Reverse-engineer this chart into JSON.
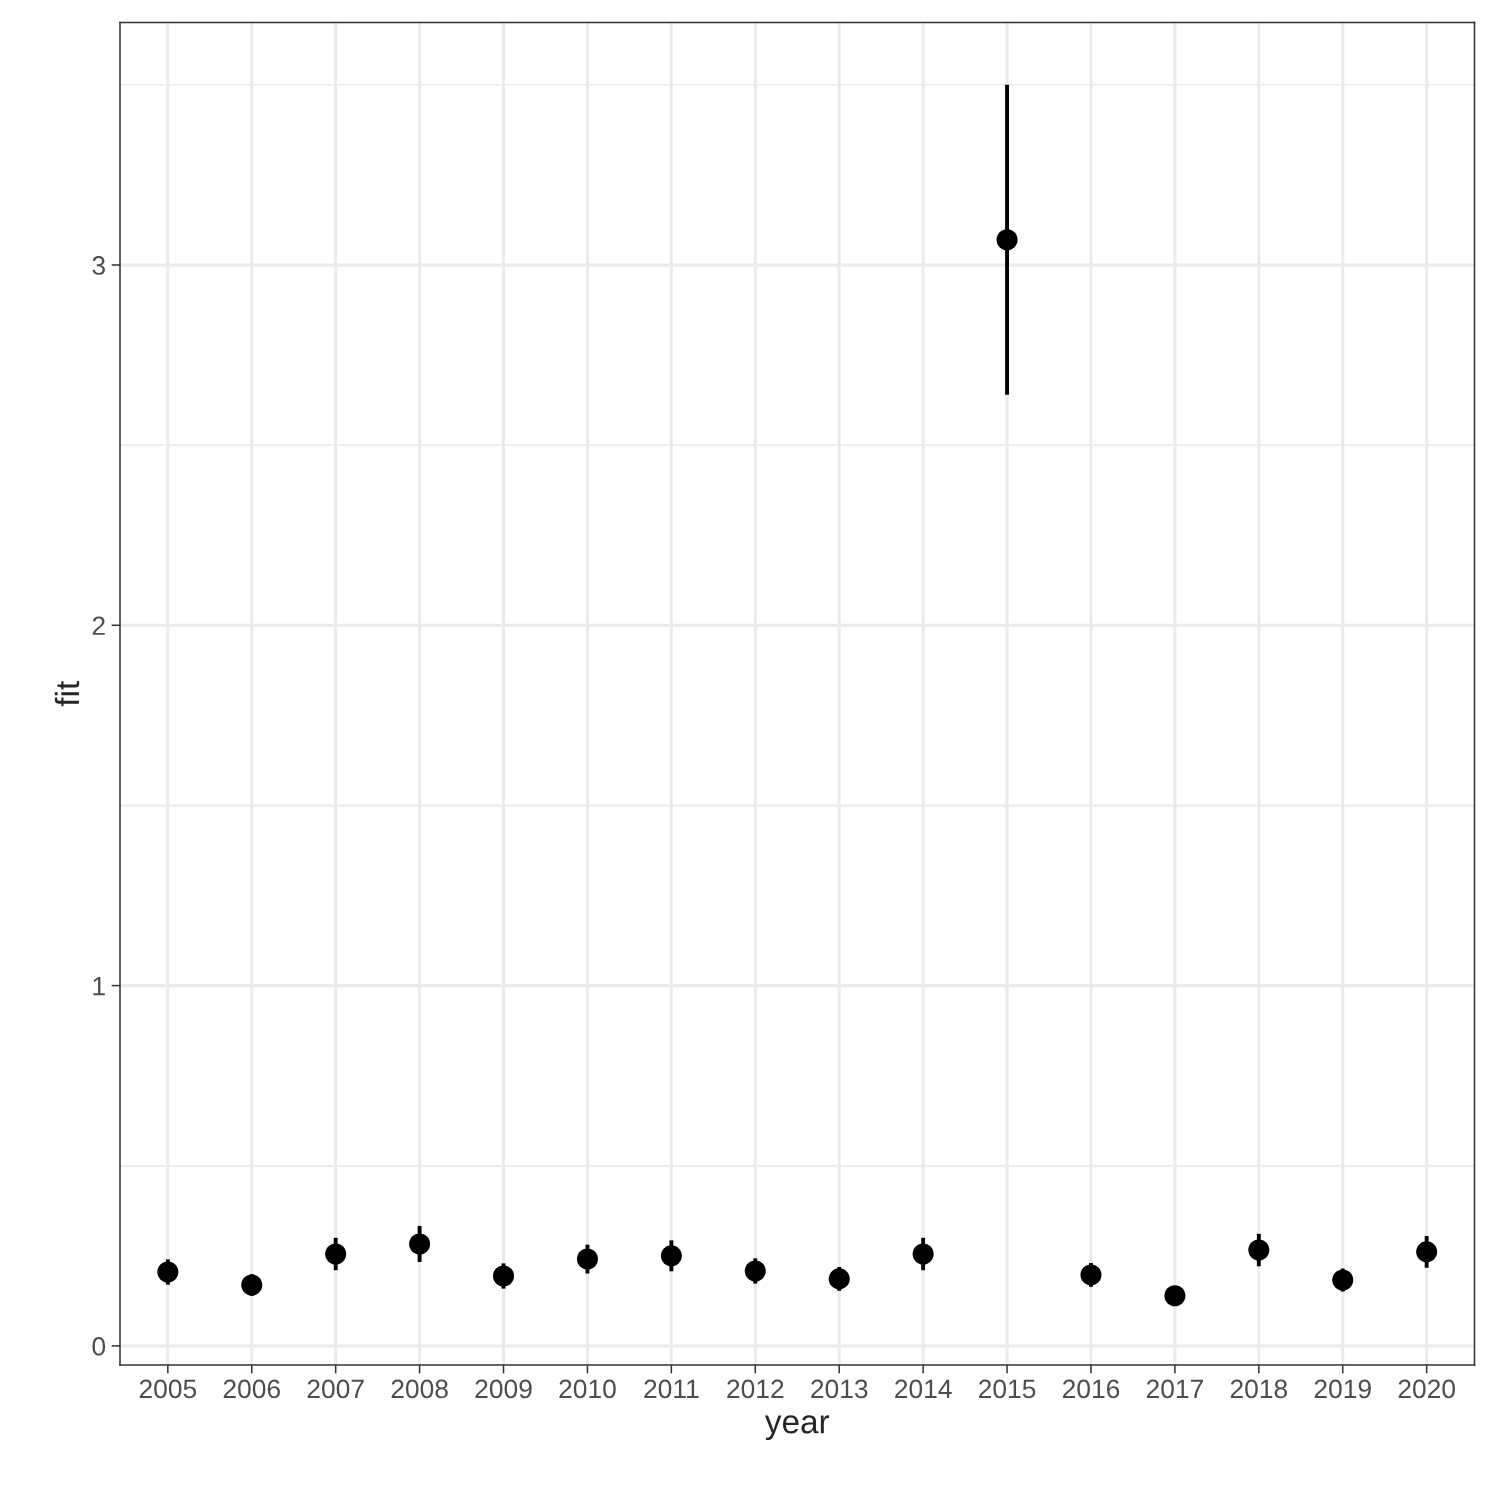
{
  "chart_data": {
    "type": "scatter",
    "xlabel": "year",
    "ylabel": "fit",
    "categories": [
      "2005",
      "2006",
      "2007",
      "2008",
      "2009",
      "2010",
      "2011",
      "2012",
      "2013",
      "2014",
      "2015",
      "2016",
      "2017",
      "2018",
      "2019",
      "2020"
    ],
    "values": [
      0.205,
      0.169,
      0.255,
      0.283,
      0.194,
      0.241,
      0.25,
      0.208,
      0.186,
      0.255,
      3.07,
      0.197,
      0.139,
      0.266,
      0.183,
      0.261
    ],
    "errors": [
      0.035,
      0.03,
      0.045,
      0.05,
      0.035,
      0.04,
      0.043,
      0.035,
      0.033,
      0.045,
      [
        2.64,
        3.5
      ],
      0.033,
      null,
      0.045,
      0.032,
      0.044
    ],
    "color": "#000000",
    "marker": "circle",
    "ylim": [
      -0.053,
      3.673
    ],
    "yticks": [
      0,
      1,
      2,
      3
    ],
    "grid": true
  }
}
